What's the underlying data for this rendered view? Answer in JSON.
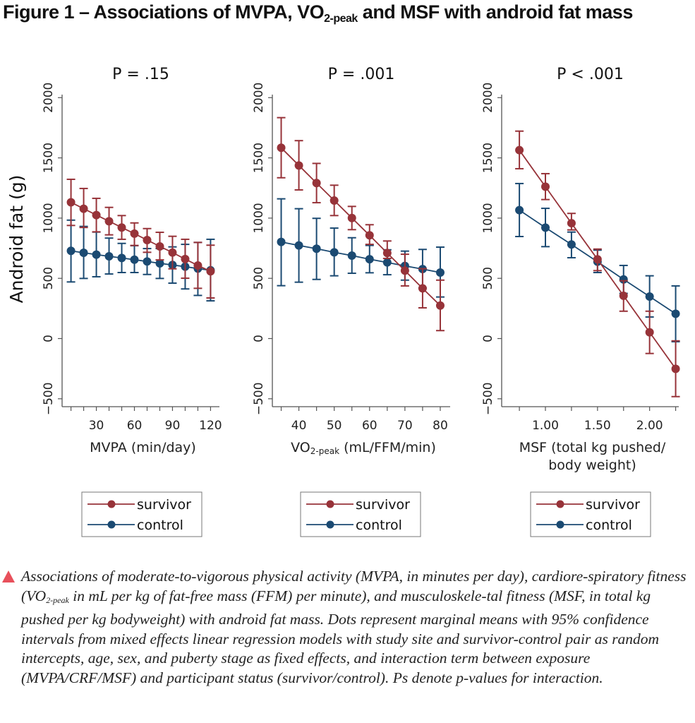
{
  "figure": {
    "title_main": "Figure 1 – Associations of MVPA, VO",
    "title_sub": "2-peak",
    "title_rest": " and MSF with android fat mass",
    "caption_part1": "Associations of moderate-to-vigorous physical activity (MVPA, in minutes per day), cardiore-spiratory fitness (VO",
    "caption_sub": "2-peak",
    "caption_part2": " in mL per kg of fat-free mass (FFM) per minute), and musculoskele-tal fitness (MSF, in total kg pushed per kg bodyweight) with android fat mass. Dots represent marginal means with 95% confidence intervals from mixed effects linear regression models with study site and survivor-control pair as random intercepts, age, sex, and puberty stage as fixed effects, and interaction term between exposure (MVPA/CRF/MSF) and participant status (survivor/control). Ps denote p-values for interaction."
  },
  "colors": {
    "survivor": "#973339",
    "control": "#1b4a72",
    "axis": "#555555",
    "caption_marker": "#e8505b"
  },
  "chart_data": [
    {
      "type": "line",
      "title": "P = .15",
      "xlabel": "MVPA (min/day)",
      "xlabel_sub": "",
      "ylabel": "Android fat (g)",
      "ylim": [
        -600,
        2000
      ],
      "yticks": [
        -500,
        0,
        500,
        1000,
        1500,
        2000
      ],
      "xlim": [
        3,
        127
      ],
      "xticks": [
        10,
        20,
        30,
        40,
        50,
        60,
        70,
        80,
        90,
        100,
        110,
        120
      ],
      "xtick_labels": [
        {
          "value": 30,
          "label": "30"
        },
        {
          "value": 60,
          "label": "60"
        },
        {
          "value": 90,
          "label": "90"
        },
        {
          "value": 120,
          "label": "120"
        }
      ],
      "x": [
        10,
        20,
        30,
        40,
        50,
        60,
        70,
        80,
        90,
        100,
        110,
        120
      ],
      "series": [
        {
          "name": "survivor",
          "values": [
            1131,
            1078,
            1025,
            974,
            922,
            871,
            818,
            765,
            714,
            660,
            607,
            558
          ],
          "ci_low": [
            939,
            922,
            886,
            861,
            824,
            773,
            716,
            653,
            579,
            501,
            417,
            337
          ],
          "ci_high": [
            1322,
            1246,
            1164,
            1089,
            1021,
            960,
            913,
            882,
            849,
            824,
            798,
            775
          ]
        },
        {
          "name": "control",
          "values": [
            728,
            712,
            697,
            683,
            669,
            655,
            640,
            624,
            611,
            597,
            581,
            567
          ],
          "ci_low": [
            470,
            499,
            513,
            536,
            548,
            548,
            532,
            499,
            460,
            412,
            358,
            313
          ],
          "ci_high": [
            983,
            931,
            884,
            834,
            790,
            771,
            747,
            747,
            761,
            782,
            798,
            824
          ]
        }
      ],
      "legend": [
        "survivor",
        "control"
      ],
      "legend_position": "bottom"
    },
    {
      "type": "line",
      "title": "P = .001",
      "xlabel": "VO",
      "xlabel_sub": "2-peak",
      "xlabel_rest": " (mL/FFM/min)",
      "ylabel": "",
      "ylim": [
        -600,
        2000
      ],
      "yticks": [
        -500,
        0,
        500,
        1000,
        1500,
        2000
      ],
      "xlim": [
        32.5,
        82.8
      ],
      "xticks": [
        35,
        40,
        45,
        50,
        55,
        60,
        65,
        70,
        75,
        80
      ],
      "xtick_labels": [
        {
          "value": 40,
          "label": "40"
        },
        {
          "value": 50,
          "label": "50"
        },
        {
          "value": 60,
          "label": "60"
        },
        {
          "value": 70,
          "label": "70"
        },
        {
          "value": 80,
          "label": "80"
        }
      ],
      "x": [
        35,
        40,
        45,
        50,
        55,
        60,
        65,
        70,
        75,
        80
      ],
      "series": [
        {
          "name": "survivor",
          "values": [
            1584,
            1437,
            1291,
            1146,
            1001,
            857,
            710,
            564,
            417,
            274
          ],
          "ci_low": [
            1335,
            1234,
            1128,
            1021,
            904,
            782,
            665,
            437,
            255,
            66
          ],
          "ci_high": [
            1834,
            1643,
            1454,
            1273,
            1097,
            945,
            810,
            700,
            580,
            485
          ]
        },
        {
          "name": "control",
          "values": [
            802,
            773,
            746,
            716,
            689,
            659,
            632,
            603,
            577,
            548
          ],
          "ci_low": [
            439,
            468,
            491,
            521,
            542,
            546,
            530,
            485,
            420,
            345
          ],
          "ci_high": [
            1160,
            1078,
            998,
            917,
            837,
            773,
            737,
            726,
            740,
            759
          ]
        }
      ],
      "legend": [
        "survivor",
        "control"
      ],
      "legend_position": "bottom"
    },
    {
      "type": "line",
      "title": "P < .001",
      "xlabel": "MSF (total kg pushed/",
      "xlabel_line2": "body weight)",
      "ylabel": "",
      "ylim": [
        -600,
        2000
      ],
      "yticks": [
        -500,
        0,
        500,
        1000,
        1500,
        2000
      ],
      "xlim": [
        0.58,
        2.28
      ],
      "xticks": [
        0.75,
        1.0,
        1.25,
        1.5,
        1.75,
        2.0,
        2.25
      ],
      "xtick_labels": [
        {
          "value": 1.0,
          "label": "1.00"
        },
        {
          "value": 1.5,
          "label": "1.50"
        },
        {
          "value": 2.0,
          "label": "2.00"
        }
      ],
      "x": [
        0.75,
        1.0,
        1.25,
        1.5,
        1.75,
        2.0,
        2.25
      ],
      "series": [
        {
          "name": "survivor",
          "values": [
            1564,
            1261,
            958,
            658,
            355,
            52,
            -251
          ],
          "ci_low": [
            1410,
            1154,
            902,
            564,
            227,
            -124,
            -482
          ],
          "ci_high": [
            1722,
            1369,
            1039,
            743,
            480,
            227,
            -19
          ]
        },
        {
          "name": "control",
          "values": [
            1066,
            921,
            781,
            638,
            491,
            349,
            206
          ],
          "ci_low": [
            847,
            763,
            671,
            548,
            375,
            179,
            -26
          ],
          "ci_high": [
            1287,
            1081,
            884,
            734,
            607,
            521,
            437
          ]
        }
      ],
      "legend": [
        "survivor",
        "control"
      ],
      "legend_position": "bottom"
    }
  ]
}
